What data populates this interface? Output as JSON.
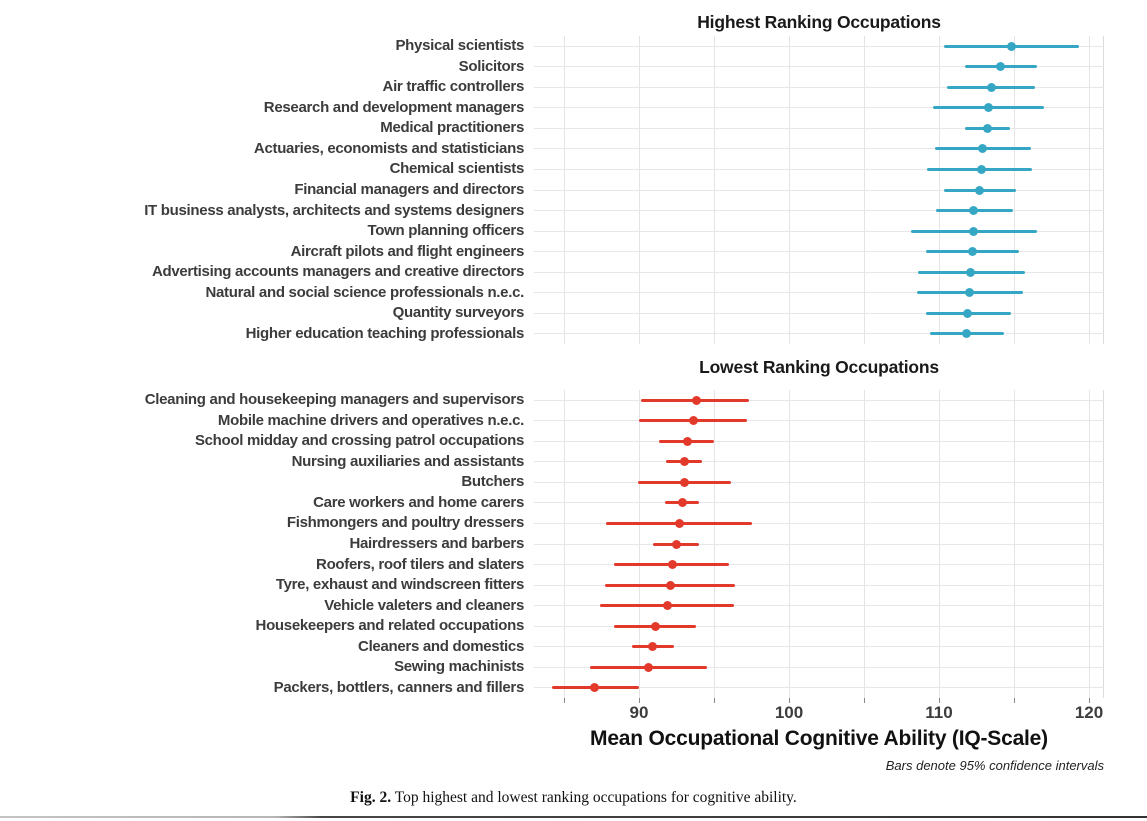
{
  "figure": {
    "x_axis": {
      "label": "Mean Occupational Cognitive Ability (IQ-Scale)",
      "tick_values": [
        85,
        90,
        95,
        100,
        105,
        110,
        115,
        120
      ],
      "labeled_ticks": [
        "90",
        "100",
        "110",
        "120"
      ],
      "labeled_tick_values": [
        90,
        100,
        110,
        120
      ],
      "range": [
        83,
        121
      ]
    },
    "footnote": "Bars denote 95% confidence intervals",
    "caption": {
      "prefix": "Fig. 2.",
      "text": "Top highest and lowest ranking occupations for cognitive ability."
    },
    "colors": {
      "highest_series": "#35a7c4",
      "lowest_series": "#e2392b",
      "gridline": "#e6e6e8",
      "axis_text": "#3d3d3d"
    }
  },
  "chart_data": [
    {
      "type": "scatter",
      "title": "Highest Ranking Occupations",
      "orientation": "horizontal-dot-with-ci",
      "series_color": "#35a7c4",
      "xlabel": "Mean Occupational Cognitive Ability (IQ-Scale)",
      "xlim": [
        83,
        121
      ],
      "x_ticks": [
        90,
        100,
        110,
        120
      ],
      "grid": true,
      "points": [
        {
          "label": "Physical scientists",
          "mean": 114.8,
          "ci_low": 110.3,
          "ci_high": 119.3
        },
        {
          "label": "Solicitors",
          "mean": 114.1,
          "ci_low": 111.7,
          "ci_high": 116.5
        },
        {
          "label": "Air traffic controllers",
          "mean": 113.5,
          "ci_low": 110.5,
          "ci_high": 116.4
        },
        {
          "label": "Research and development managers",
          "mean": 113.3,
          "ci_low": 109.6,
          "ci_high": 117.0
        },
        {
          "label": "Medical practitioners",
          "mean": 113.2,
          "ci_low": 111.7,
          "ci_high": 114.7
        },
        {
          "label": "Actuaries, economists and statisticians",
          "mean": 112.9,
          "ci_low": 109.7,
          "ci_high": 116.1
        },
        {
          "label": "Chemical scientists",
          "mean": 112.8,
          "ci_low": 109.2,
          "ci_high": 116.2
        },
        {
          "label": "Financial managers and directors",
          "mean": 112.7,
          "ci_low": 110.3,
          "ci_high": 115.1
        },
        {
          "label": "IT business analysts, architects and systems designers",
          "mean": 112.3,
          "ci_low": 109.8,
          "ci_high": 114.9
        },
        {
          "label": "Town planning officers",
          "mean": 112.3,
          "ci_low": 108.1,
          "ci_high": 116.5
        },
        {
          "label": "Aircraft pilots and flight engineers",
          "mean": 112.2,
          "ci_low": 109.1,
          "ci_high": 115.3
        },
        {
          "label": "Advertising accounts managers and creative directors",
          "mean": 112.1,
          "ci_low": 108.6,
          "ci_high": 115.7
        },
        {
          "label": "Natural and social science professionals n.e.c.",
          "mean": 112.0,
          "ci_low": 108.5,
          "ci_high": 115.6
        },
        {
          "label": "Quantity surveyors",
          "mean": 111.9,
          "ci_low": 109.1,
          "ci_high": 114.8
        },
        {
          "label": "Higher education teaching professionals",
          "mean": 111.8,
          "ci_low": 109.4,
          "ci_high": 114.3
        }
      ]
    },
    {
      "type": "scatter",
      "title": "Lowest Ranking Occupations",
      "orientation": "horizontal-dot-with-ci",
      "series_color": "#e2392b",
      "xlabel": "Mean Occupational Cognitive Ability (IQ-Scale)",
      "xlim": [
        83,
        121
      ],
      "x_ticks": [
        90,
        100,
        110,
        120
      ],
      "grid": true,
      "points": [
        {
          "label": "Cleaning and housekeeping managers and supervisors",
          "mean": 93.8,
          "ci_low": 90.1,
          "ci_high": 97.3
        },
        {
          "label": "Mobile machine drivers and operatives n.e.c.",
          "mean": 93.6,
          "ci_low": 90.0,
          "ci_high": 97.2
        },
        {
          "label": "School midday and crossing patrol occupations",
          "mean": 93.2,
          "ci_low": 91.3,
          "ci_high": 95.0
        },
        {
          "label": "Nursing auxiliaries and assistants",
          "mean": 93.0,
          "ci_low": 91.8,
          "ci_high": 94.2
        },
        {
          "label": "Butchers",
          "mean": 93.0,
          "ci_low": 89.9,
          "ci_high": 96.1
        },
        {
          "label": "Care workers and home carers",
          "mean": 92.9,
          "ci_low": 91.7,
          "ci_high": 94.0
        },
        {
          "label": "Fishmongers and poultry dressers",
          "mean": 92.7,
          "ci_low": 87.8,
          "ci_high": 97.5
        },
        {
          "label": "Hairdressers and barbers",
          "mean": 92.5,
          "ci_low": 90.9,
          "ci_high": 94.0
        },
        {
          "label": "Roofers, roof tilers and slaters",
          "mean": 92.2,
          "ci_low": 88.3,
          "ci_high": 96.0
        },
        {
          "label": "Tyre, exhaust and windscreen fitters",
          "mean": 92.1,
          "ci_low": 87.7,
          "ci_high": 96.4
        },
        {
          "label": "Vehicle valeters and cleaners",
          "mean": 91.9,
          "ci_low": 87.4,
          "ci_high": 96.3
        },
        {
          "label": "Housekeepers and related occupations",
          "mean": 91.1,
          "ci_low": 88.3,
          "ci_high": 93.8
        },
        {
          "label": "Cleaners and domestics",
          "mean": 90.9,
          "ci_low": 89.5,
          "ci_high": 92.3
        },
        {
          "label": "Sewing machinists",
          "mean": 90.6,
          "ci_low": 86.7,
          "ci_high": 94.5
        },
        {
          "label": "Packers, bottlers, canners and fillers",
          "mean": 87.0,
          "ci_low": 84.2,
          "ci_high": 90.0
        }
      ]
    }
  ]
}
